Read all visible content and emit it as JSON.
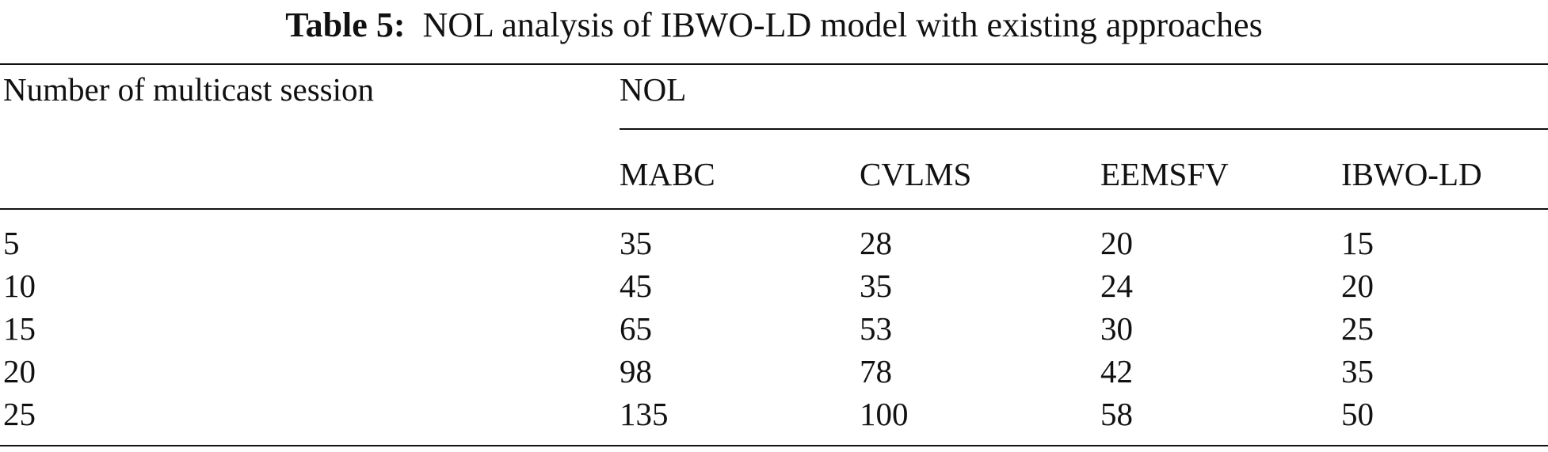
{
  "caption": {
    "label": "Table 5:",
    "text": "NOL analysis of IBWO-LD model with existing approaches"
  },
  "table": {
    "row_header": "Number of multicast session",
    "group_header": "NOL",
    "columns": [
      "MABC",
      "CVLMS",
      "EEMSFV",
      "IBWO-LD"
    ],
    "rows": [
      {
        "session": "5",
        "values": [
          "35",
          "28",
          "20",
          "15"
        ]
      },
      {
        "session": "10",
        "values": [
          "45",
          "35",
          "24",
          "20"
        ]
      },
      {
        "session": "15",
        "values": [
          "65",
          "53",
          "30",
          "25"
        ]
      },
      {
        "session": "20",
        "values": [
          "98",
          "78",
          "42",
          "35"
        ]
      },
      {
        "session": "25",
        "values": [
          "135",
          "100",
          "58",
          "50"
        ]
      }
    ]
  }
}
